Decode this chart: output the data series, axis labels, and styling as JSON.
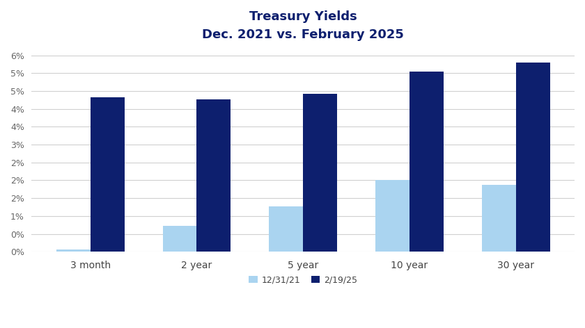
{
  "title_line1": "Treasury Yields",
  "title_line2": "Dec. 2021 vs. February 2025",
  "categories": [
    "3 month",
    "2 year",
    "5 year",
    "10 year",
    "30 year"
  ],
  "series_dec2021": [
    0.0006,
    0.0073,
    0.0126,
    0.0201,
    0.0188
  ],
  "series_feb2025": [
    0.0433,
    0.0427,
    0.0443,
    0.0505,
    0.053
  ],
  "color_dec2021": "#aad4f0",
  "color_feb2025": "#0d1f6e",
  "legend_dec2021": "12/31/21",
  "legend_feb2025": "2/19/25",
  "ylim_max": 0.057,
  "y_tick_interval": 0.005,
  "background_color": "#ffffff",
  "gridline_color": "#d0d0d0",
  "title_color": "#0d1f6e",
  "bar_width": 0.32
}
